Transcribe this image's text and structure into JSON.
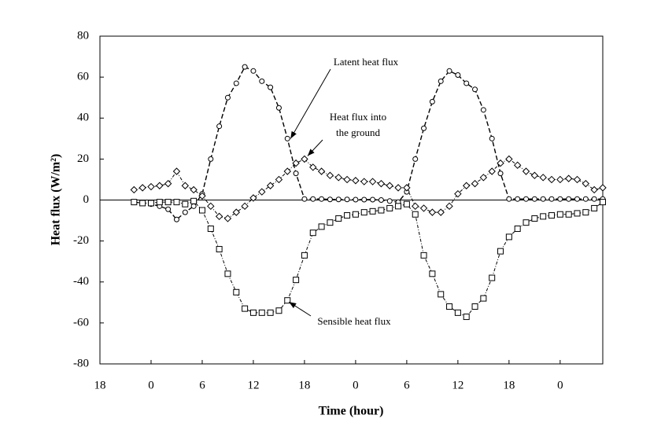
{
  "chart_data": {
    "type": "line",
    "xlabel": "Time (hour)",
    "ylabel": "Heat flux (W/m²)",
    "x": [
      4,
      5,
      6,
      7,
      8,
      9,
      10,
      11,
      12,
      13,
      14,
      15,
      16,
      17,
      18,
      19,
      20,
      21,
      22,
      23,
      24,
      25,
      26,
      27,
      28,
      29,
      30,
      31,
      32,
      33,
      34,
      35,
      36,
      37,
      38,
      39,
      40,
      41,
      42,
      43,
      44,
      45,
      46,
      47,
      48,
      49,
      50,
      51,
      52,
      53,
      54,
      55,
      56,
      57,
      58,
      59
    ],
    "series": [
      {
        "name": "Latent heat flux",
        "color": "#000000",
        "marker": "circle",
        "dash": "6,3",
        "values": [
          -1,
          -1.5,
          -2,
          -3,
          -4.5,
          -9.5,
          -6,
          -3,
          3,
          20,
          36,
          50,
          57,
          65,
          63,
          58,
          55,
          45,
          30,
          13,
          0.5,
          0.5,
          0.5,
          0.3,
          0.3,
          0.3,
          0.2,
          0.2,
          0.2,
          0,
          -0.5,
          -1,
          4,
          20,
          35,
          48,
          58,
          63,
          61,
          57,
          54,
          44,
          30,
          13,
          0.5,
          0.5,
          0.5,
          0.5,
          0.5,
          0.5,
          0.5,
          0.5,
          0.5,
          0.5,
          0.5,
          0.5
        ]
      },
      {
        "name": "Heat flux into the ground",
        "color": "#000000",
        "marker": "diamond",
        "dash": "4,2,1,2",
        "values": [
          5,
          6,
          6.5,
          7,
          8,
          14,
          7,
          5,
          2,
          -3,
          -8,
          -9,
          -6,
          -3,
          1,
          4,
          7,
          10,
          14,
          18,
          20,
          16,
          14,
          12,
          11,
          10,
          9.5,
          9,
          9,
          8,
          7,
          6,
          6,
          -3,
          -4,
          -6,
          -6,
          -3,
          3,
          7,
          8,
          11,
          14,
          18,
          20,
          17,
          14,
          12,
          11,
          10,
          10,
          10.5,
          10,
          8,
          5,
          6
        ]
      },
      {
        "name": "Sensible heat flux",
        "color": "#000000",
        "marker": "square",
        "dash": "4,2,1,2",
        "values": [
          -1,
          -1.5,
          -1.5,
          -1,
          -1,
          -1,
          -2,
          -0.5,
          -5,
          -14,
          -24,
          -36,
          -45,
          -53,
          -55,
          -55,
          -55,
          -54,
          -49,
          -39,
          -27,
          -16,
          -13,
          -11,
          -9,
          -7.5,
          -7,
          -6,
          -5.5,
          -5,
          -4,
          -3,
          -2,
          -7,
          -27,
          -36,
          -46,
          -52,
          -55,
          -57,
          -52,
          -48,
          -38,
          -25,
          -18,
          -14,
          -11,
          -9,
          -8,
          -7.5,
          -7,
          -7,
          -6.5,
          -6,
          -4,
          -1
        ]
      }
    ],
    "annotations": [
      {
        "lines": [
          "Latent heat flux"
        ],
        "series": 0,
        "point": 18
      },
      {
        "lines": [
          "Heat flux into",
          "the ground"
        ],
        "series": 1,
        "point": 20
      },
      {
        "lines": [
          "Sensible heat flux"
        ],
        "series": 2,
        "point": 18
      }
    ],
    "xlim": [
      0,
      59
    ],
    "xticks": [
      {
        "value": 0,
        "label": "18"
      },
      {
        "value": 6,
        "label": "0"
      },
      {
        "value": 12,
        "label": "6"
      },
      {
        "value": 18,
        "label": "12"
      },
      {
        "value": 24,
        "label": "18"
      },
      {
        "value": 30,
        "label": "0"
      },
      {
        "value": 36,
        "label": "6"
      },
      {
        "value": 42,
        "label": "12"
      },
      {
        "value": 48,
        "label": "18"
      },
      {
        "value": 54,
        "label": "0"
      }
    ],
    "ylim": [
      -80,
      80
    ],
    "yticks": [
      -80,
      -60,
      -40,
      -20,
      0,
      20,
      40,
      60,
      80
    ],
    "zero_line": true
  }
}
